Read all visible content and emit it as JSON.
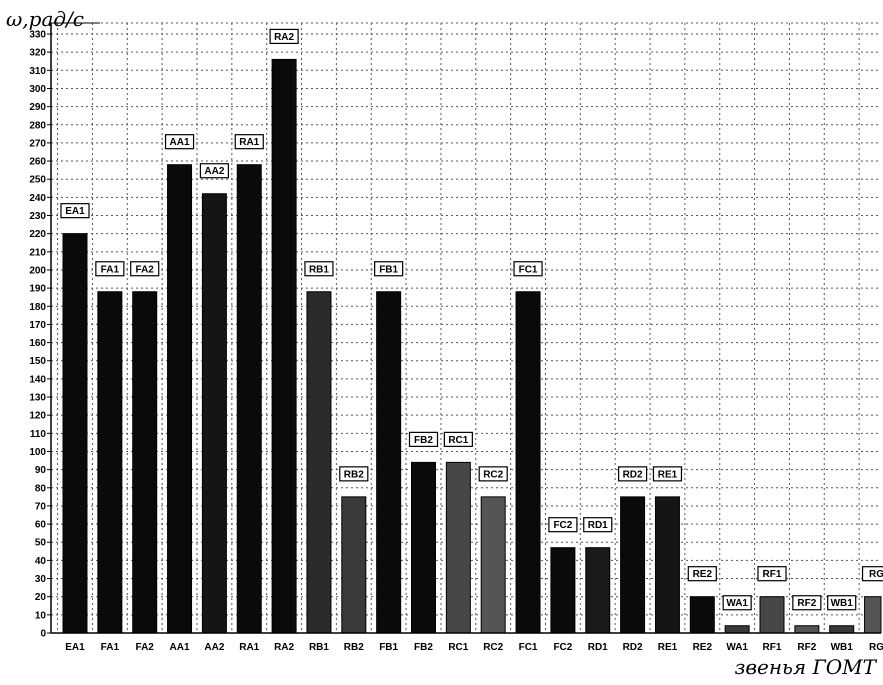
{
  "chart_data": {
    "type": "bar",
    "ylabel": "ω,рад/с",
    "xlabel": "звенья ГОМТ",
    "ylim": [
      0,
      330
    ],
    "ytick_step": 10,
    "grid": true,
    "categories": [
      "EA1",
      "FA1",
      "FA2",
      "AA1",
      "AA2",
      "RA1",
      "RA2",
      "RB1",
      "RB2",
      "FB1",
      "FB2",
      "RC1",
      "RC2",
      "FC1",
      "FC2",
      "RD1",
      "RD2",
      "RE1",
      "RE2",
      "WA1",
      "RF1",
      "RF2",
      "WB1",
      "RG"
    ],
    "values": [
      220,
      188,
      188,
      258,
      242,
      258,
      316,
      188,
      75,
      188,
      94,
      94,
      75,
      188,
      47,
      47,
      75,
      75,
      20,
      4,
      20,
      4,
      4,
      20
    ],
    "data_labels": [
      "EA1",
      "FA1",
      "FA2",
      "AA1",
      "AA2",
      "RA1",
      "RA2",
      "RB1",
      "RB2",
      "FB1",
      "FB2",
      "RC1",
      "RC2",
      "FC1",
      "FC2",
      "RD1",
      "RD2",
      "RE1",
      "RE2",
      "WA1",
      "RF1",
      "RF2",
      "WB1",
      "RG"
    ],
    "bar_colors": [
      "#0a0a0a",
      "#0a0a0a",
      "#0a0a0a",
      "#0a0a0a",
      "#151515",
      "#0a0a0a",
      "#0a0a0a",
      "#2b2b2b",
      "#3a3a3a",
      "#0a0a0a",
      "#0a0a0a",
      "#474747",
      "#555555",
      "#0a0a0a",
      "#0a0a0a",
      "#1a1a1a",
      "#0a0a0a",
      "#151515",
      "#0a0a0a",
      "#3a3a3a",
      "#474747",
      "#555555",
      "#3a3a3a",
      "#555555"
    ]
  }
}
